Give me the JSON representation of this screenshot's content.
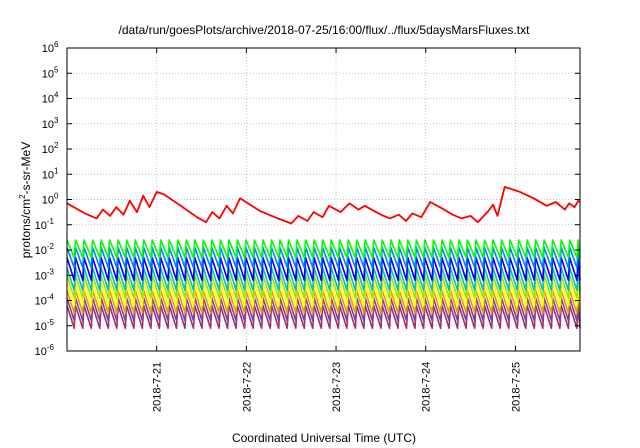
{
  "chart_data": {
    "type": "line",
    "title": "/data/run/goesPlots/archive/2018-07-25/16:00/flux/../flux/5daysMarsFluxes.txt",
    "xlabel": "Coordinated Universal Time (UTC)",
    "ylabel": "protons/cm2-s-sr-MeV",
    "ylabel_parts": {
      "pre": "protons/cm",
      "sup": "2",
      "post": "-s-sr-MeV"
    },
    "y_scale": "log",
    "ylim_exp": [
      -6,
      6
    ],
    "y_tick_exponents": [
      -6,
      -5,
      -4,
      -3,
      -2,
      -1,
      0,
      1,
      2,
      3,
      4,
      5,
      6
    ],
    "y_tick_base": "10",
    "x_range_days": [
      "2018-07-20",
      "2018-07-25"
    ],
    "xlim_dayfrac": [
      20.0,
      25.72
    ],
    "x_ticks": [
      {
        "label": "2018-7-21",
        "day": 21
      },
      {
        "label": "2018-7-22",
        "day": 22
      },
      {
        "label": "2018-7-23",
        "day": 23
      },
      {
        "label": "2018-7-24",
        "day": 24
      },
      {
        "label": "2018-7-25",
        "day": 25
      }
    ],
    "grid": true,
    "series": [
      {
        "color": "#ff0000",
        "pattern": "red"
      },
      {
        "color": "#00ff00",
        "pattern": "sawtooth",
        "hi": -1.6,
        "lo": -2.3,
        "period": 0.095
      },
      {
        "color": "#0080ff",
        "pattern": "sawtooth",
        "hi": -1.9,
        "lo": -2.7,
        "period": 0.095
      },
      {
        "color": "#0000ff",
        "pattern": "sawtooth",
        "hi": -2.3,
        "lo": -3.2,
        "period": 0.095
      },
      {
        "color": "#00c0c0",
        "pattern": "sawtooth",
        "hi": -2.7,
        "lo": -3.6,
        "period": 0.095
      },
      {
        "color": "#a0e000",
        "pattern": "sawtooth",
        "hi": -3.0,
        "lo": -3.9,
        "period": 0.095
      },
      {
        "color": "#ffff00",
        "pattern": "sawtooth",
        "hi": -3.3,
        "lo": -4.2,
        "period": 0.095
      },
      {
        "color": "#e0a000",
        "pattern": "sawtooth",
        "hi": -3.6,
        "lo": -4.5,
        "period": 0.095
      },
      {
        "color": "#8040a0",
        "pattern": "sawtooth",
        "hi": -3.9,
        "lo": -4.8,
        "period": 0.095
      },
      {
        "color": "#a0306a",
        "pattern": "sawtooth",
        "hi": -4.2,
        "lo": -5.1,
        "period": 0.095
      }
    ],
    "red_points": [
      [
        20.0,
        -0.15
      ],
      [
        20.2,
        -0.55
      ],
      [
        20.33,
        -0.75
      ],
      [
        20.4,
        -0.4
      ],
      [
        20.48,
        -0.65
      ],
      [
        20.55,
        -0.3
      ],
      [
        20.63,
        -0.6
      ],
      [
        20.7,
        -0.05
      ],
      [
        20.78,
        -0.5
      ],
      [
        20.85,
        0.15
      ],
      [
        20.92,
        -0.3
      ],
      [
        21.0,
        0.3
      ],
      [
        21.08,
        0.2
      ],
      [
        21.25,
        -0.2
      ],
      [
        21.45,
        -0.7
      ],
      [
        21.55,
        -0.9
      ],
      [
        21.62,
        -0.5
      ],
      [
        21.7,
        -0.75
      ],
      [
        21.78,
        -0.25
      ],
      [
        21.85,
        -0.55
      ],
      [
        21.93,
        0.05
      ],
      [
        22.15,
        -0.45
      ],
      [
        22.35,
        -0.75
      ],
      [
        22.5,
        -0.95
      ],
      [
        22.58,
        -0.65
      ],
      [
        22.68,
        -0.85
      ],
      [
        22.75,
        -0.5
      ],
      [
        22.85,
        -0.7
      ],
      [
        22.92,
        -0.25
      ],
      [
        23.05,
        -0.5
      ],
      [
        23.15,
        -0.15
      ],
      [
        23.25,
        -0.4
      ],
      [
        23.32,
        -0.25
      ],
      [
        23.5,
        -0.6
      ],
      [
        23.6,
        -0.75
      ],
      [
        23.7,
        -0.6
      ],
      [
        23.78,
        -0.85
      ],
      [
        23.85,
        -0.55
      ],
      [
        23.95,
        -0.7
      ],
      [
        24.05,
        -0.1
      ],
      [
        24.18,
        -0.35
      ],
      [
        24.3,
        -0.6
      ],
      [
        24.4,
        -0.75
      ],
      [
        24.5,
        -0.65
      ],
      [
        24.58,
        -0.9
      ],
      [
        24.7,
        -0.45
      ],
      [
        24.75,
        -0.2
      ],
      [
        24.8,
        -0.65
      ],
      [
        24.88,
        0.5
      ],
      [
        25.05,
        0.3
      ],
      [
        25.2,
        0.05
      ],
      [
        25.35,
        -0.25
      ],
      [
        25.45,
        -0.1
      ],
      [
        25.55,
        -0.4
      ],
      [
        25.6,
        -0.15
      ],
      [
        25.66,
        -0.3
      ],
      [
        25.7,
        -0.05
      ],
      [
        25.72,
        -0.1
      ]
    ]
  }
}
